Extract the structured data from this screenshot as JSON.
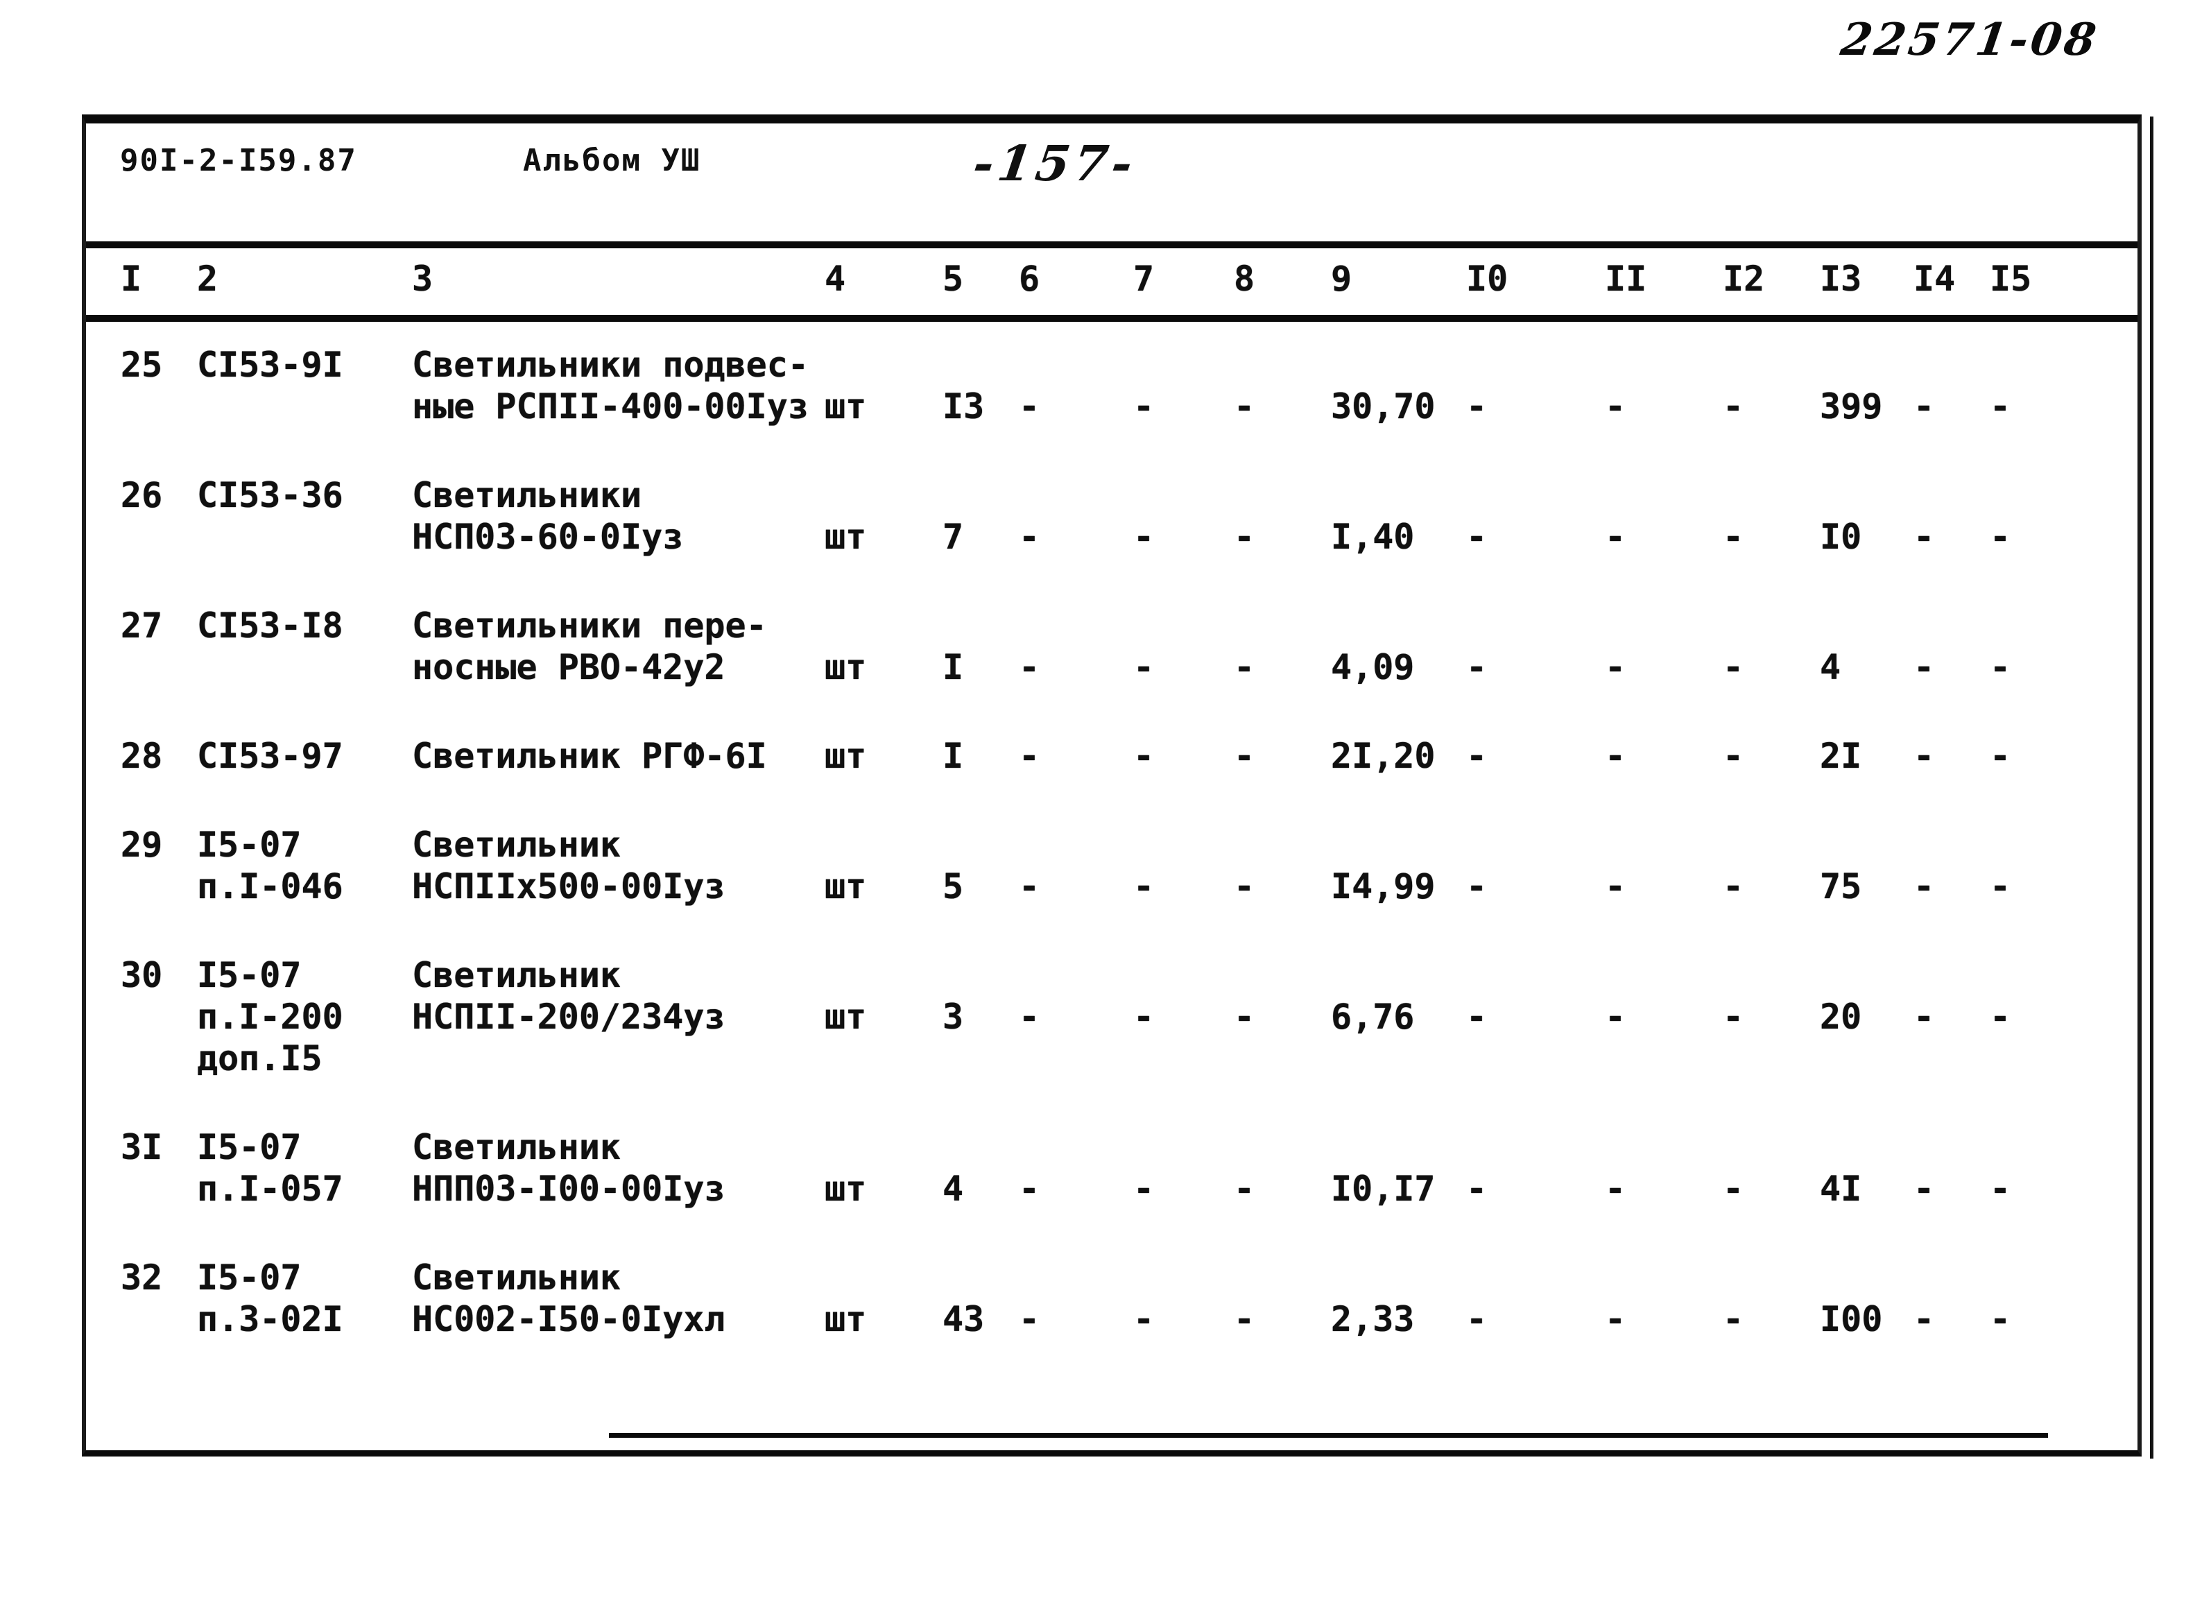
{
  "page": {
    "stamp": "22571-08",
    "doc_number": "90I-2-I59.87",
    "album": "Альбом УШ",
    "page_number": "-157-"
  },
  "table": {
    "column_headers": [
      "I",
      "2",
      "3",
      "4",
      "5",
      "6",
      "7",
      "8",
      "9",
      "I0",
      "II",
      "I2",
      "I3",
      "I4",
      "I5"
    ],
    "rows": [
      {
        "cells": [
          "25",
          "СI53-9I",
          "Светильники подвес-\nные РСПII-400-00Iуз",
          "шт",
          "I3",
          "-",
          "-",
          "-",
          "30,70",
          "-",
          "-",
          "-",
          "399",
          "-",
          "-"
        ]
      },
      {
        "cells": [
          "26",
          "СI53-36",
          "Светильники\nНСП03-60-0Iуз",
          "шт",
          "7",
          "-",
          "-",
          "-",
          "I,40",
          "-",
          "-",
          "-",
          "I0",
          "-",
          "-"
        ]
      },
      {
        "cells": [
          "27",
          "СI53-I8",
          "Светильники пере-\nносные РВО-42у2",
          "шт",
          "I",
          "-",
          "-",
          "-",
          "4,09",
          "-",
          "-",
          "-",
          "4",
          "-",
          "-"
        ]
      },
      {
        "cells": [
          "28",
          "СI53-97",
          "Светильник РГФ-6I",
          "шт",
          "I",
          "-",
          "-",
          "-",
          "2I,20",
          "-",
          "-",
          "-",
          "2I",
          "-",
          "-"
        ]
      },
      {
        "cells": [
          "29",
          "I5-07\nп.I-046",
          "Светильник\nНСПIIх500-00Iуз",
          "шт",
          "5",
          "-",
          "-",
          "-",
          "I4,99",
          "-",
          "-",
          "-",
          "75",
          "-",
          "-"
        ]
      },
      {
        "cells": [
          "30",
          "I5-07\nп.I-200\nдоп.I5",
          "Светильник\nНСПII-200/234уз",
          "шт",
          "3",
          "-",
          "-",
          "-",
          "6,76",
          "-",
          "-",
          "-",
          "20",
          "-",
          "-"
        ]
      },
      {
        "cells": [
          "3I",
          "I5-07\nп.I-057",
          "Светильник\nНПП03-I00-00Iуз",
          "шт",
          "4",
          "-",
          "-",
          "-",
          "I0,I7",
          "-",
          "-",
          "-",
          "4I",
          "-",
          "-"
        ]
      },
      {
        "cells": [
          "32",
          "I5-07\nп.3-02I",
          "Светильник\nНС002-I50-0Iухл",
          "шт",
          "43",
          "-",
          "-",
          "-",
          "2,33",
          "-",
          "-",
          "-",
          "I00",
          "-",
          "-"
        ]
      }
    ]
  }
}
